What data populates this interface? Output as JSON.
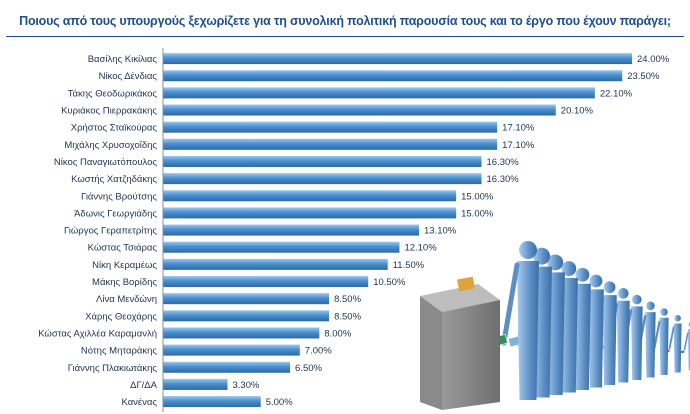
{
  "chart_data": {
    "type": "bar",
    "orientation": "horizontal",
    "title": "Ποιους από τους υπουργούς ξεχωρίζετε για τη συνολική πολιτική παρουσία τους και το έργο που έχουν παράγει;",
    "categories": [
      "Βασίλης Κικίλιας",
      "Νίκος Δένδιας",
      "Τάκης Θεοδωρικάκος",
      "Κυριάκος Πιερρακάκης",
      "Χρήστος Σταϊκούρας",
      "Μιχάλης Χρυσοχοΐδης",
      "Νίκος Παναγιωτόπουλος",
      "Κωστής Χατζηδάκης",
      "Γιάννης Βρούτσης",
      "Άδωνις Γεωργιάδης",
      "Γιώργος Γεραπετρίτης",
      "Κώστας Τσιάρας",
      "Νίκη Κεραμέως",
      "Μάκης Βορίδης",
      "Λίνα Μενδώνη",
      "Χάρης Θεοχάρης",
      "Κώστας Αχιλλέα Καραμανλή",
      "Νότης Μηταράκης",
      "Γιάννης Πλακιωτάκης",
      "ΔΓ/ΔΑ",
      "Κανένας"
    ],
    "values": [
      24.0,
      23.5,
      22.1,
      20.1,
      17.1,
      17.1,
      16.3,
      16.3,
      15.0,
      15.0,
      13.1,
      12.1,
      11.5,
      10.5,
      8.5,
      8.5,
      8.0,
      7.0,
      6.5,
      3.3,
      5.0
    ],
    "value_labels": [
      "24.00%",
      "23.50%",
      "22.10%",
      "20.10%",
      "17.10%",
      "17.10%",
      "16.30%",
      "16.30%",
      "15.00%",
      "15.00%",
      "13.10%",
      "12.10%",
      "11.50%",
      "10.50%",
      "8.50%",
      "8.50%",
      "8.00%",
      "7.00%",
      "6.50%",
      "3.30%",
      "5.00%"
    ],
    "xlim": [
      0,
      24
    ],
    "grid": false,
    "legend": "none",
    "bar_color": "#4a8fd0",
    "bar_color_light": "#9cc8ee",
    "bar_color_dark": "#2c6aa8"
  },
  "colors": {
    "title": "#1f4e8c",
    "rule": "#1f4e8c",
    "figure_body": "#5d8fc6",
    "figure_light": "#a9cdee",
    "ballot_box": "#6f6f6f"
  },
  "decoration": "people-queue-ballot-box-illustration"
}
